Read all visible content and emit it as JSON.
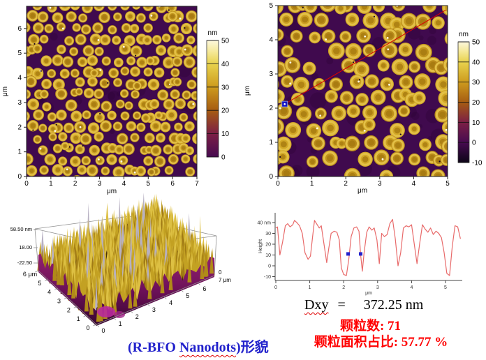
{
  "figure": {
    "afm_left": {
      "x_label": "μm",
      "y_label": "μm",
      "x_ticks": [
        "0",
        "1",
        "2",
        "3",
        "4",
        "5",
        "6",
        "7"
      ],
      "y_ticks": [
        "0",
        "1",
        "2",
        "3",
        "4",
        "5",
        "6"
      ],
      "colorbar": {
        "unit": "nm",
        "ticks": [
          "50",
          "40",
          "30",
          "20",
          "10",
          "0"
        ]
      }
    },
    "afm_right": {
      "x_label": "μm",
      "y_label": "μm",
      "x_ticks": [
        "0",
        "1",
        "2",
        "3",
        "4",
        "5"
      ],
      "y_ticks": [
        "0",
        "1",
        "2",
        "3",
        "4",
        "5"
      ],
      "colorbar": {
        "unit": "nm",
        "ticks": [
          "50",
          "40",
          "30",
          "20",
          "10",
          "0",
          "-10"
        ]
      }
    },
    "surface3d": {
      "z_ticks": [
        "58.50 nm",
        "18.00",
        "-22.50"
      ],
      "y_ticks": [
        "0",
        "1",
        "2",
        "3",
        "4",
        "5",
        "6 μm"
      ],
      "x_ticks": [
        "0",
        "1",
        "2",
        "3",
        "4",
        "5",
        "6"
      ],
      "x_axis_end_top": "0",
      "x_axis_end": "7 μm"
    },
    "profile": {
      "y_axis_title": "Height",
      "x_label": "μm",
      "y_ticks": [
        "40 nm",
        "30",
        "20",
        "10",
        "0",
        "-10"
      ],
      "x_ticks": [
        "0",
        "1",
        "2",
        "3",
        "4",
        "5"
      ]
    }
  },
  "annotations": {
    "dxy_label": "Dxy",
    "dxy_eq": "=",
    "dxy_value": "372.25 nm",
    "particle_count": "颗粒数: 71",
    "particle_area": "颗粒面积占比: 57.77 %",
    "caption_prefix": "(R-BFO ",
    "caption_nanodots": "Nanodots",
    "caption_suffix": ")形貌"
  },
  "colors": {
    "afm_background": "#400a4e",
    "dot_gold": "#c69a1e",
    "profile_line": "#e86a6a",
    "marker_blue": "#2222cc",
    "annotation_red": "#ff0000",
    "caption_blue": "#2222cc",
    "scan_line_red": "#dd0000"
  },
  "chart_data": [
    {
      "type": "heatmap",
      "title": "AFM topography, 7 μm scan",
      "xlabel": "μm",
      "ylabel": "μm",
      "x_range": [
        0,
        7
      ],
      "y_range": [
        0,
        6.9
      ],
      "colorbar": {
        "unit": "nm",
        "min": 0,
        "max": 50,
        "ticks": [
          50,
          40,
          30,
          20,
          10,
          0
        ]
      },
      "legend_position": "right",
      "grid": false
    },
    {
      "type": "heatmap",
      "title": "AFM topography, 5 μm scan with section line",
      "xlabel": "μm",
      "ylabel": "μm",
      "x_range": [
        0,
        5
      ],
      "y_range": [
        0,
        5
      ],
      "colorbar": {
        "unit": "nm",
        "min": -10,
        "max": 50,
        "ticks": [
          50,
          40,
          30,
          20,
          10,
          0,
          -10
        ]
      },
      "section_line": {
        "x1": 0.2,
        "y1": 2.12,
        "x2": 4.95,
        "y2": 4.87
      }
    },
    {
      "type": "surface",
      "title": "3D AFM topography",
      "x_ticks": [
        0,
        1,
        2,
        3,
        4,
        5,
        6
      ],
      "x_end_label": "7 μm",
      "y_ticks": [
        0,
        1,
        2,
        3,
        4,
        5
      ],
      "y_end_label": "6 μm",
      "z_range": [
        -22.5,
        58.5
      ],
      "z_tick_values": [
        58.5,
        18.0,
        -22.5
      ]
    },
    {
      "type": "line",
      "title": "Height profile along section line",
      "xlabel": "μm",
      "ylabel": "Height",
      "y_unit": "nm",
      "xlim": [
        0,
        5.5
      ],
      "ylim": [
        -10,
        40
      ],
      "line_color": "#e86a6a",
      "x": [
        0,
        0.05,
        0.12,
        0.2,
        0.28,
        0.35,
        0.42,
        0.5,
        0.55,
        0.62,
        0.7,
        0.78,
        0.86,
        0.95,
        1.02,
        1.08,
        1.14,
        1.2,
        1.28,
        1.34,
        1.42,
        1.5,
        1.56,
        1.63,
        1.72,
        1.8,
        1.87,
        1.93,
        2.0,
        2.08,
        2.15,
        2.22,
        2.3,
        2.38,
        2.45,
        2.5,
        2.55,
        2.6,
        2.68,
        2.75,
        2.83,
        2.9,
        2.98,
        3.05,
        3.12,
        3.2,
        3.28,
        3.36,
        3.44,
        3.52,
        3.6,
        3.68,
        3.76,
        3.84,
        3.92,
        4.0,
        4.08,
        4.16,
        4.24,
        4.32,
        4.4,
        4.48,
        4.56,
        4.64,
        4.72,
        4.8,
        4.88,
        4.96,
        5.04,
        5.12,
        5.2,
        5.28,
        5.36,
        5.44
      ],
      "y": [
        35,
        36,
        10,
        22,
        37,
        39,
        36,
        38,
        42,
        40,
        37,
        30,
        12,
        6,
        9,
        26,
        42,
        39,
        35,
        37,
        20,
        3,
        16,
        30,
        32,
        31,
        24,
        -2,
        -8,
        -9,
        6,
        27,
        35,
        36,
        32,
        10,
        -5,
        12,
        31,
        36,
        33,
        35,
        24,
        2,
        30,
        27,
        29,
        39,
        43,
        25,
        0,
        12,
        35,
        37,
        36,
        38,
        20,
        2,
        21,
        38,
        34,
        31,
        35,
        29,
        32,
        30,
        26,
        12,
        -7,
        -9,
        18,
        37,
        36,
        25
      ],
      "markers": [
        {
          "x": 2.13,
          "y": 11
        },
        {
          "x": 2.5,
          "y": 11
        }
      ]
    }
  ]
}
